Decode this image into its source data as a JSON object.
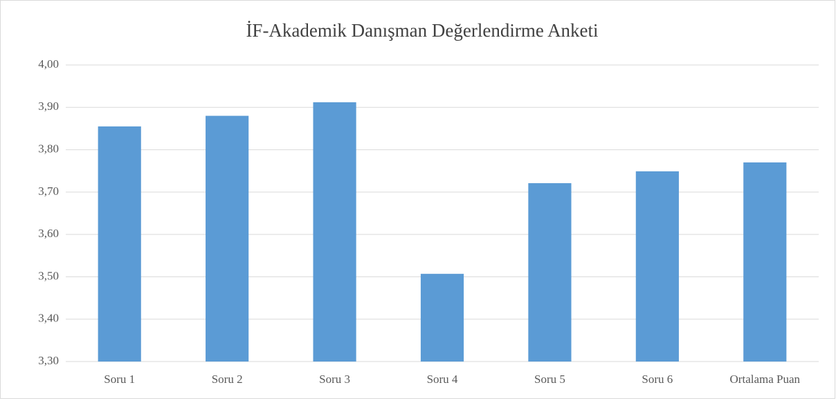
{
  "chart_data": {
    "type": "bar",
    "title": "İF-Akademik Danışman Değerlendirme Anketi",
    "categories": [
      "Soru 1",
      "Soru 2",
      "Soru 3",
      "Soru 4",
      "Soru 5",
      "Soru 6",
      "Ortalama Puan"
    ],
    "values": [
      3.855,
      3.88,
      3.912,
      3.507,
      3.721,
      3.749,
      3.77
    ],
    "color": "#5b9bd5",
    "ylim": [
      3.3,
      4.0
    ],
    "yticks": [
      {
        "value": 3.3,
        "label": "3,30"
      },
      {
        "value": 3.4,
        "label": "3,40"
      },
      {
        "value": 3.5,
        "label": "3,50"
      },
      {
        "value": 3.6,
        "label": "3,60"
      },
      {
        "value": 3.7,
        "label": "3,70"
      },
      {
        "value": 3.8,
        "label": "3,80"
      },
      {
        "value": 3.9,
        "label": "3,90"
      },
      {
        "value": 4.0,
        "label": "4,00"
      }
    ],
    "grid": true
  }
}
